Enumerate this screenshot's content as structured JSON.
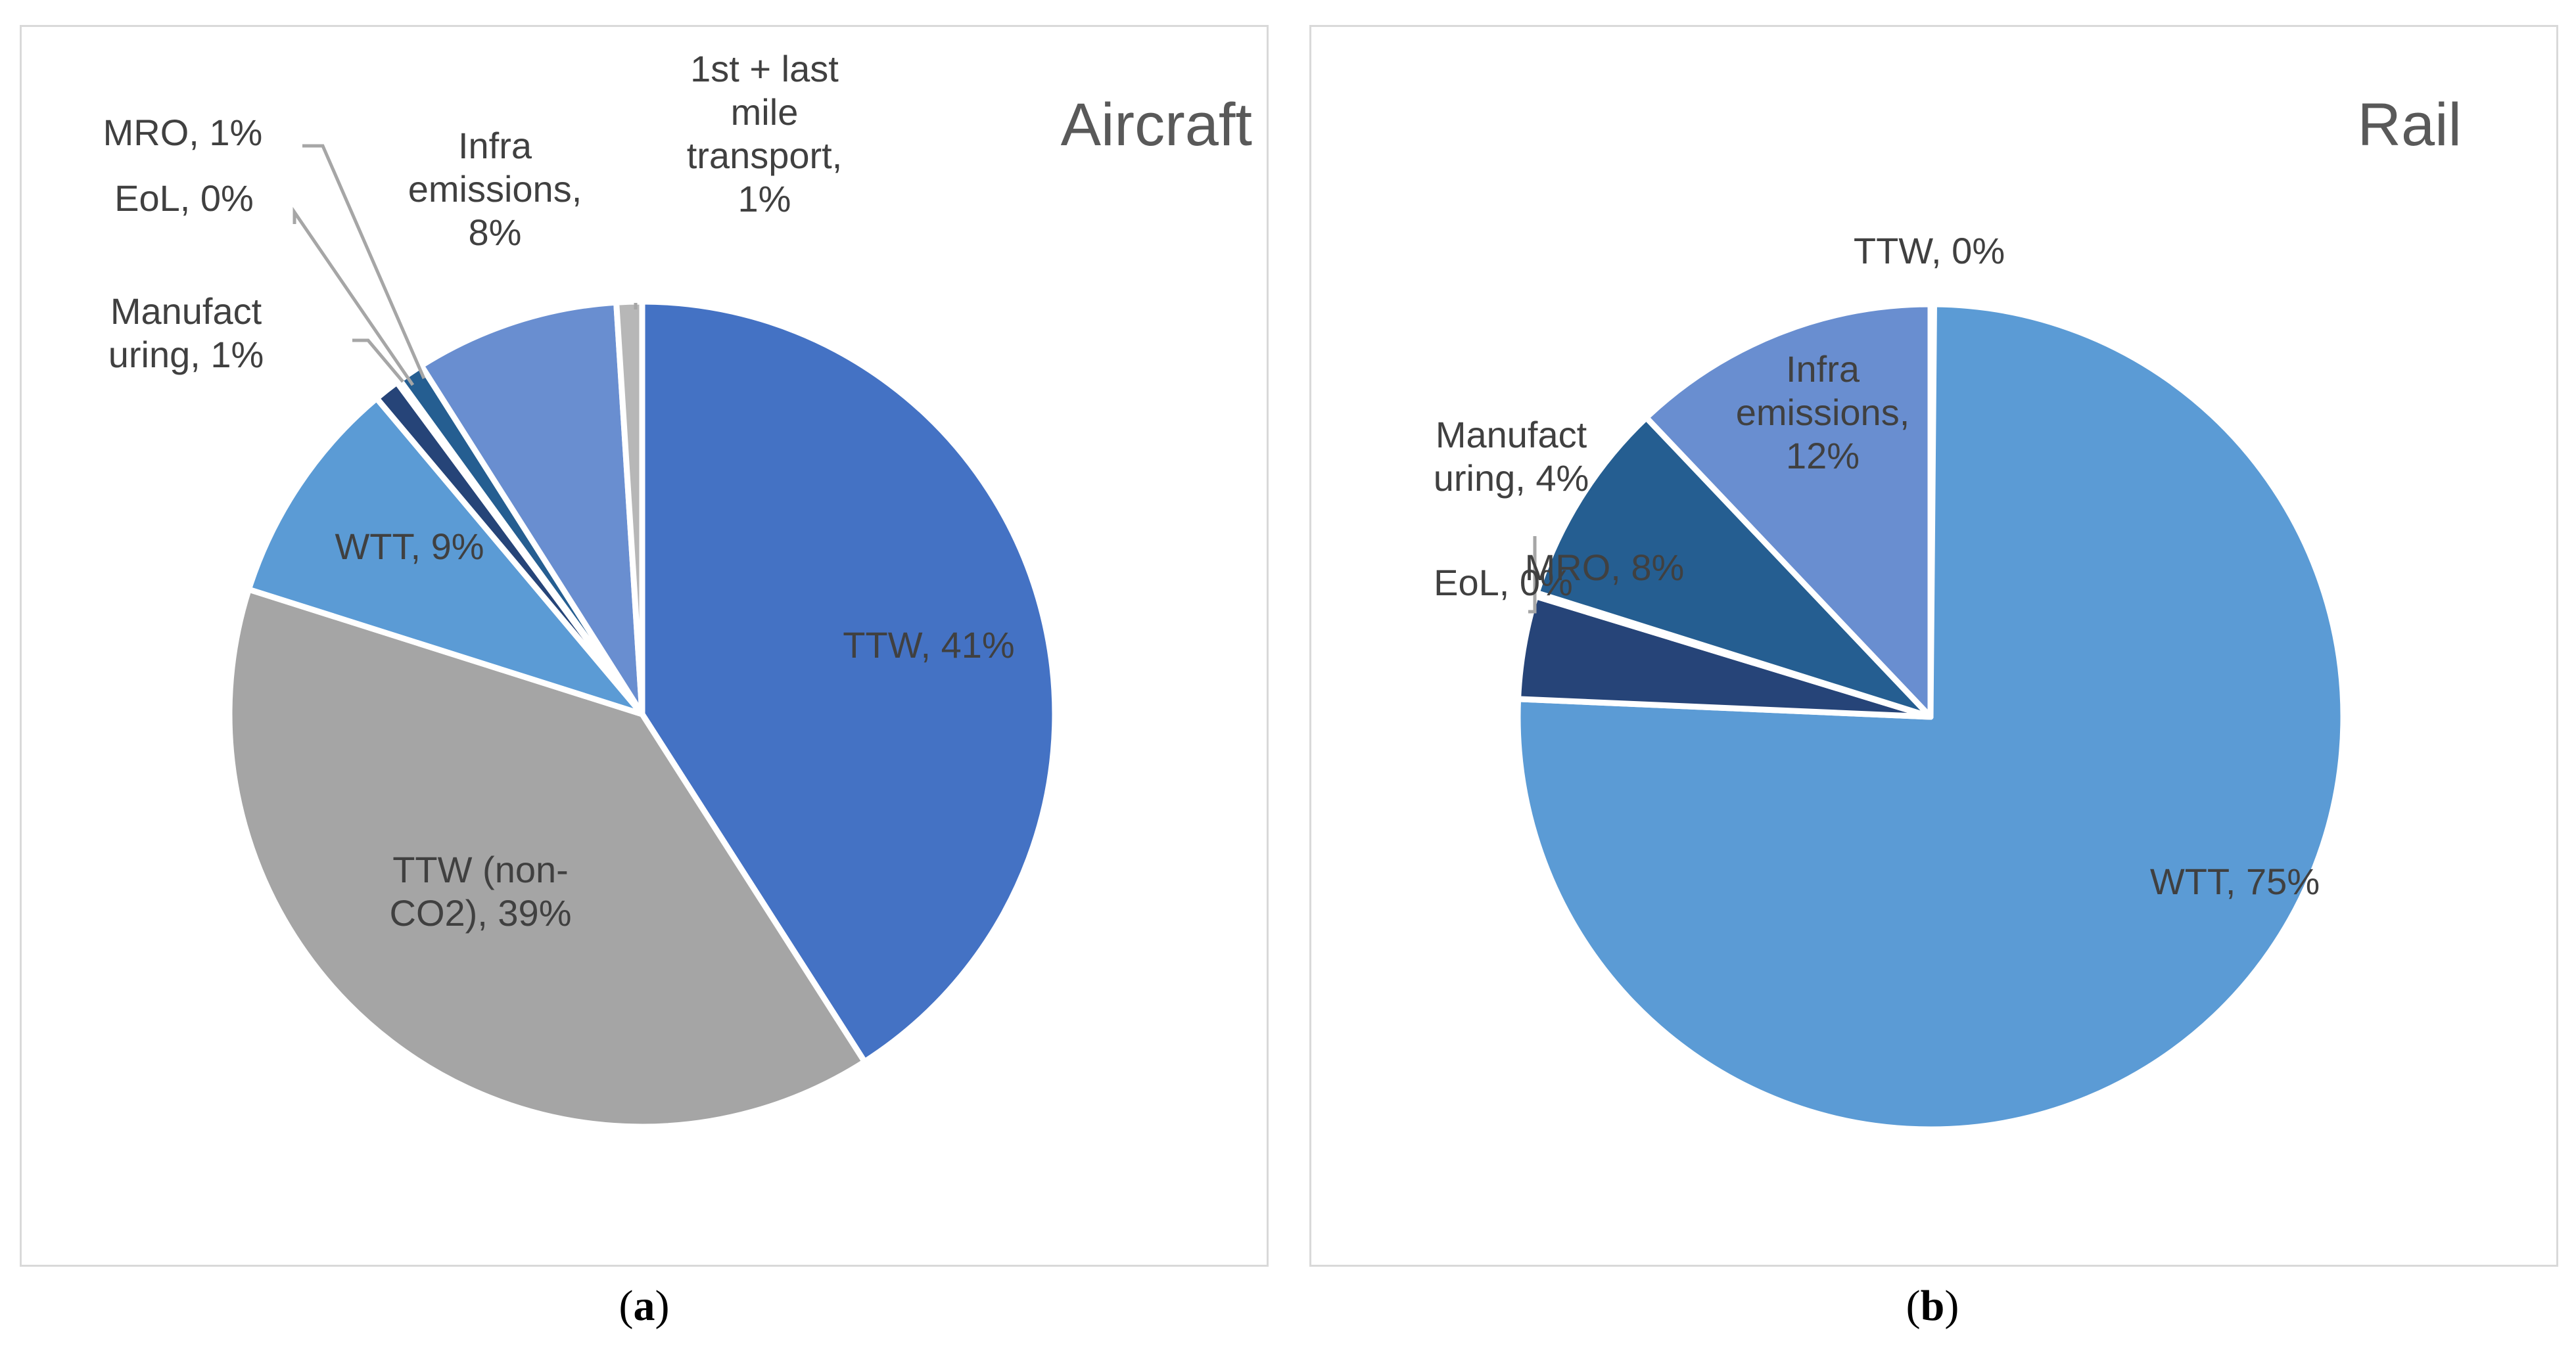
{
  "chart_data": [
    {
      "type": "pie",
      "title": "Aircraft",
      "panel_label": "a",
      "slices": [
        {
          "name": "TTW",
          "value": 41,
          "label": "TTW, 41%",
          "color": "#4472c4"
        },
        {
          "name": "TTW (non-CO2)",
          "value": 39,
          "label": "TTW (non-CO2), 39%",
          "color": "#a5a5a5"
        },
        {
          "name": "WTT",
          "value": 9,
          "label": "WTT, 9%",
          "color": "#5b9bd5"
        },
        {
          "name": "Manufacturing",
          "value": 1,
          "label": "Manufacturing, 1%",
          "color": "#264478"
        },
        {
          "name": "EoL",
          "value": 0,
          "label": "EoL, 0%",
          "color": "#636363"
        },
        {
          "name": "MRO",
          "value": 1,
          "label": "MRO, 1%",
          "color": "#255e91"
        },
        {
          "name": "Infra emissions",
          "value": 8,
          "label": "Infra emissions, 8%",
          "color": "#698ed0"
        },
        {
          "name": "1st + last mile transport",
          "value": 1,
          "label": "1st + last mile transport, 1%",
          "color": "#b7b7b7"
        }
      ]
    },
    {
      "type": "pie",
      "title": "Rail",
      "panel_label": "b",
      "slices": [
        {
          "name": "TTW",
          "value": 0,
          "label": "TTW, 0%",
          "color": "#4472c4"
        },
        {
          "name": "WTT",
          "value": 75,
          "label": "WTT, 75%",
          "color": "#5b9bd5"
        },
        {
          "name": "Manufacturing",
          "value": 4,
          "label": "Manufacturing, 4%",
          "color": "#264478"
        },
        {
          "name": "EoL",
          "value": 0,
          "label": "EoL, 0%",
          "color": "#636363"
        },
        {
          "name": "MRO",
          "value": 8,
          "label": "MRO, 8%",
          "color": "#255e91"
        },
        {
          "name": "Infra emissions",
          "value": 12,
          "label": "Infra emissions, 12%",
          "color": "#698ed0"
        }
      ]
    }
  ]
}
